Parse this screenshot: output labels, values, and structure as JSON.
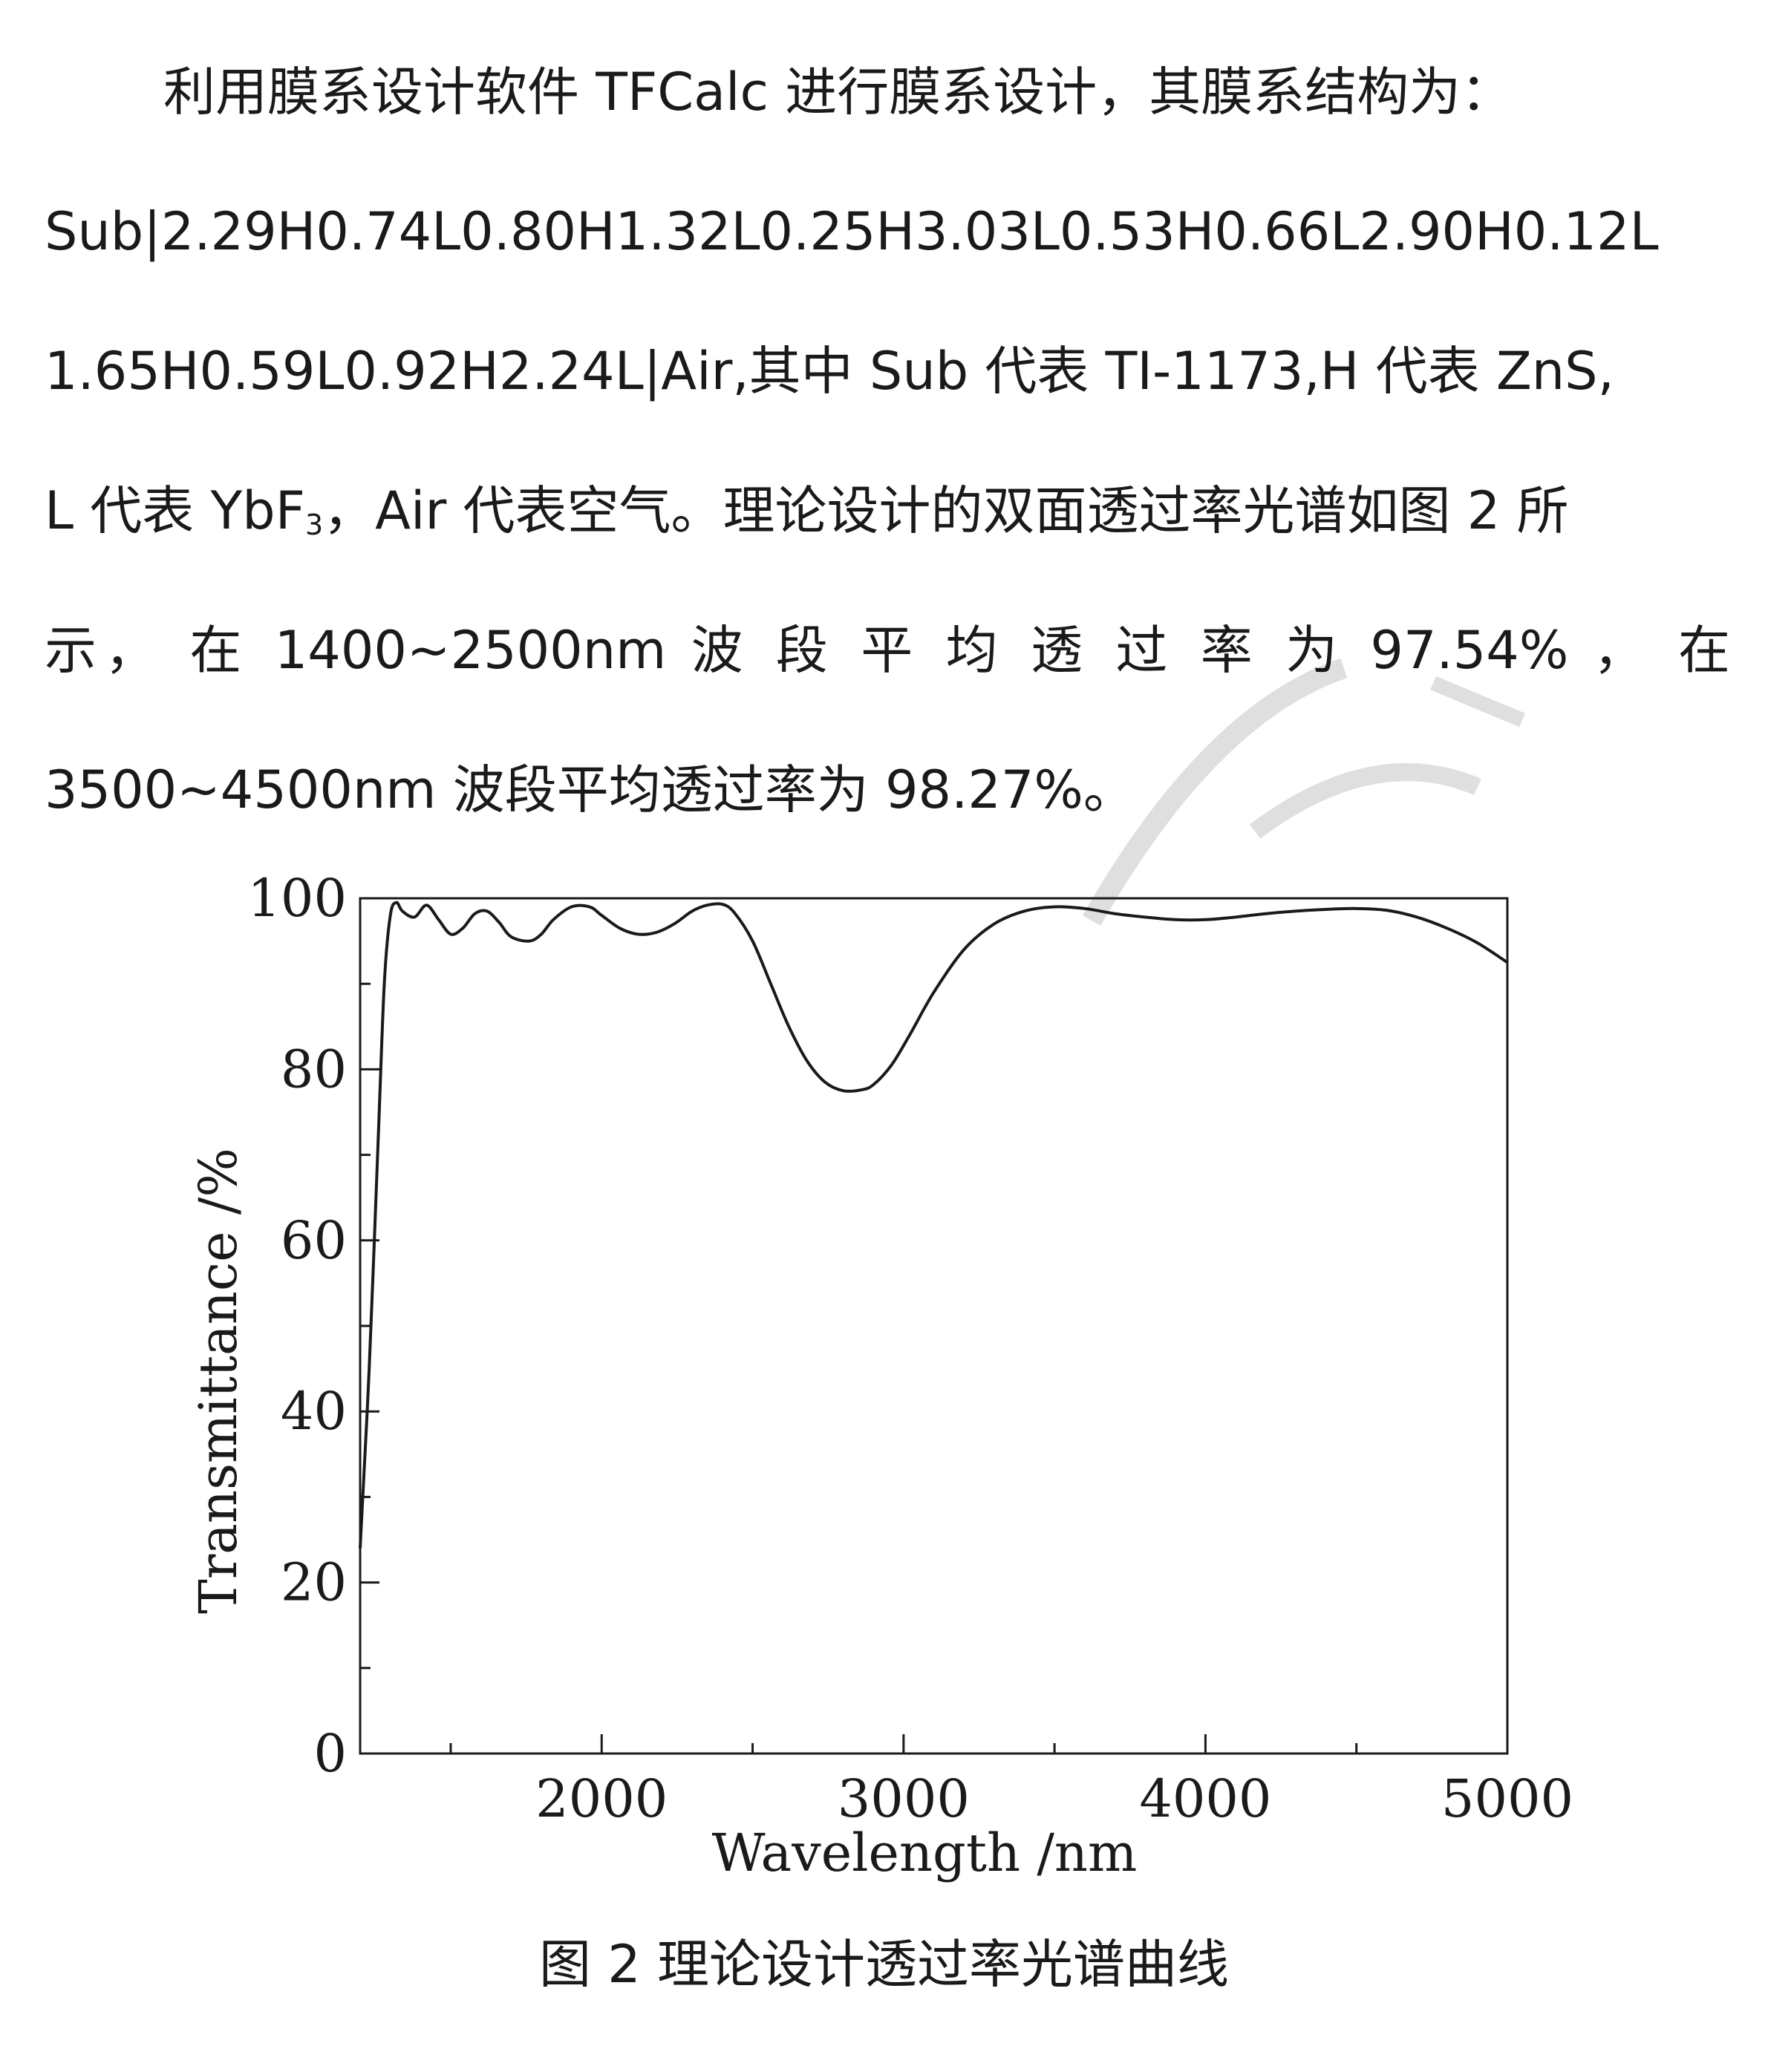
{
  "paragraph": {
    "line1": "利用膜系设计软件 TFCalc 进行膜系设计，其膜系结构为：",
    "line2": "Sub|2.29H0.74L0.80H1.32L0.25H3.03L0.53H0.66L2.90H0.12L",
    "line3": "1.65H0.59L0.92H2.24L|Air,其中 Sub 代表 TI-1173,H 代表 ZnS,",
    "line4_a": "L 代表 YbF",
    "line4_sub": "3",
    "line4_b": "，Air 代表空气。理论设计的双面透过率光谱如图 2 所",
    "line5": "示， 在 1400~2500nm 波 段 平 均 透 过 率 为 97.54% ， 在",
    "line6": "3500~4500nm 波段平均透过率为 98.27%。"
  },
  "caption": "图 2  理论设计透过率光谱曲线",
  "chart_data": {
    "type": "line",
    "xlabel": "Wavelength /nm",
    "ylabel": "Transmittance /%",
    "xlim": [
      1200,
      5000
    ],
    "ylim": [
      0,
      100
    ],
    "x_ticks": [
      2000,
      3000,
      4000,
      5000
    ],
    "y_ticks": [
      0,
      20,
      40,
      60,
      80,
      100
    ],
    "grid": false,
    "series": [
      {
        "color": "#1a1a1a",
        "x": [
          1200,
          1230,
          1260,
          1280,
          1300,
          1320,
          1340,
          1380,
          1420,
          1460,
          1500,
          1540,
          1580,
          1620,
          1660,
          1700,
          1760,
          1800,
          1840,
          1900,
          1960,
          2000,
          2060,
          2120,
          2180,
          2240,
          2300,
          2350,
          2400,
          2440,
          2500,
          2560,
          2620,
          2680,
          2740,
          2800,
          2860,
          2900,
          2960,
          3020,
          3100,
          3200,
          3300,
          3400,
          3500,
          3600,
          3700,
          3800,
          3900,
          4000,
          4100,
          4200,
          4300,
          4400,
          4500,
          4600,
          4700,
          4800,
          4900,
          5000
        ],
        "y": [
          24,
          45,
          72,
          90,
          98,
          99.5,
          98.5,
          97.8,
          99.2,
          97.5,
          95.8,
          96.5,
          98.2,
          98.5,
          97.2,
          95.5,
          95.0,
          95.8,
          97.5,
          99.0,
          99.0,
          98.0,
          96.5,
          95.8,
          96.0,
          97.0,
          98.5,
          99.2,
          99.3,
          98.3,
          95.0,
          90.0,
          85.0,
          81.0,
          78.5,
          77.5,
          77.6,
          78.2,
          80.5,
          84.0,
          89.0,
          94.0,
          97.0,
          98.5,
          99.0,
          98.8,
          98.2,
          97.8,
          97.5,
          97.5,
          97.8,
          98.2,
          98.5,
          98.7,
          98.8,
          98.6,
          97.8,
          96.5,
          94.8,
          92.5
        ]
      }
    ]
  }
}
